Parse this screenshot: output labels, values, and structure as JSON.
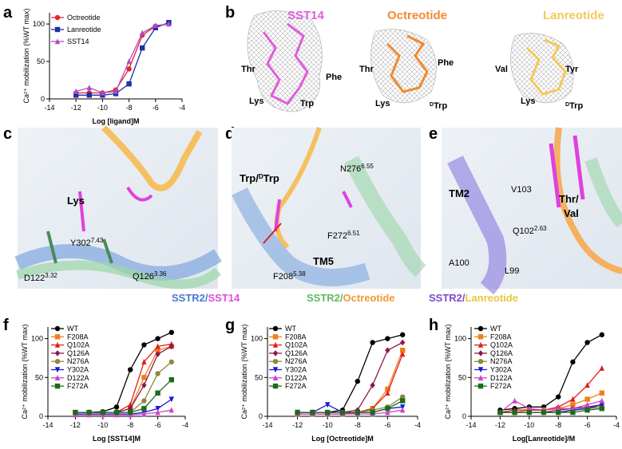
{
  "chart_data": [
    {
      "type": "line",
      "xlabel": "Log [ligand]M",
      "ylabel": "Ca²⁺ mobilization (%WT max)",
      "xlim": [
        -14,
        -4
      ],
      "xticks": [
        -14,
        -12,
        -10,
        -8,
        -6,
        -4
      ],
      "ylim": [
        0,
        115
      ],
      "yticks": [
        0,
        50,
        100
      ],
      "x": [
        -12,
        -11,
        -10,
        -9,
        -8,
        -7,
        -6,
        -5
      ],
      "series": [
        {
          "name": "Octreotide",
          "color": "#e8242a",
          "marker": "circle",
          "values": [
            8,
            8,
            8,
            12,
            40,
            85,
            97,
            100
          ]
        },
        {
          "name": "Lanreotide",
          "color": "#1f2fa8",
          "marker": "square",
          "values": [
            5,
            5,
            5,
            7,
            20,
            68,
            95,
            102
          ]
        },
        {
          "name": "SST14",
          "color": "#b04ac8",
          "marker": "triangle",
          "values": [
            10,
            15,
            8,
            10,
            50,
            88,
            98,
            100
          ]
        }
      ]
    },
    {
      "type": "line",
      "xlabel": "Log [SST14]M",
      "ylabel": "Ca²⁺ mobilization (%WT max)",
      "xlim": [
        -14,
        -4
      ],
      "xticks": [
        -14,
        -12,
        -10,
        -8,
        -6,
        -4
      ],
      "ylim": [
        0,
        115
      ],
      "yticks": [
        0,
        50,
        100
      ],
      "x": [
        -12,
        -11,
        -10,
        -9,
        -8,
        -7,
        -6,
        -5
      ],
      "series": [
        {
          "name": "WT",
          "color": "#000000",
          "marker": "circle",
          "values": [
            5,
            5,
            6,
            12,
            60,
            92,
            100,
            108
          ]
        },
        {
          "name": "F208A",
          "color": "#f07f1a",
          "marker": "square",
          "values": [
            5,
            5,
            5,
            5,
            10,
            50,
            85,
            90
          ]
        },
        {
          "name": "Q102A",
          "color": "#e01e1e",
          "marker": "triangle",
          "values": [
            5,
            5,
            5,
            5,
            15,
            70,
            90,
            93
          ]
        },
        {
          "name": "Q126A",
          "color": "#8b1a4a",
          "marker": "diamond",
          "values": [
            5,
            5,
            5,
            5,
            10,
            40,
            80,
            90
          ]
        },
        {
          "name": "N276A",
          "color": "#8a8a3a",
          "marker": "circle",
          "values": [
            5,
            5,
            5,
            5,
            5,
            20,
            55,
            70
          ]
        },
        {
          "name": "Y302A",
          "color": "#1a1ad0",
          "marker": "triangle-down",
          "values": [
            3,
            3,
            3,
            3,
            3,
            5,
            10,
            22
          ]
        },
        {
          "name": "D122A",
          "color": "#cc44cc",
          "marker": "triangle",
          "values": [
            2,
            2,
            2,
            2,
            2,
            3,
            5,
            8
          ]
        },
        {
          "name": "F272A",
          "color": "#1d6b1d",
          "marker": "square",
          "values": [
            5,
            5,
            5,
            5,
            5,
            10,
            30,
            47
          ]
        }
      ]
    },
    {
      "type": "line",
      "xlabel": "Log [Octreotide]M",
      "ylabel": "Ca²⁺ mobilization (%WT max)",
      "xlim": [
        -14,
        -4
      ],
      "xticks": [
        -14,
        -12,
        -10,
        -8,
        -6,
        -4
      ],
      "ylim": [
        0,
        115
      ],
      "yticks": [
        0,
        50,
        100
      ],
      "x": [
        -12,
        -11,
        -10,
        -9,
        -8,
        -7,
        -6,
        -5
      ],
      "series": [
        {
          "name": "WT",
          "color": "#000000",
          "marker": "circle",
          "values": [
            5,
            5,
            5,
            8,
            45,
            95,
            100,
            105
          ]
        },
        {
          "name": "F208A",
          "color": "#f07f1a",
          "marker": "square",
          "values": [
            3,
            3,
            3,
            3,
            5,
            10,
            35,
            85
          ]
        },
        {
          "name": "Q102A",
          "color": "#e01e1e",
          "marker": "triangle",
          "values": [
            3,
            3,
            3,
            3,
            5,
            10,
            30,
            80
          ]
        },
        {
          "name": "Q126A",
          "color": "#8b1a4a",
          "marker": "diamond",
          "values": [
            5,
            5,
            5,
            5,
            8,
            40,
            85,
            95
          ]
        },
        {
          "name": "N276A",
          "color": "#8a8a3a",
          "marker": "circle",
          "values": [
            5,
            5,
            5,
            5,
            5,
            8,
            12,
            25
          ]
        },
        {
          "name": "Y302A",
          "color": "#1a1ad0",
          "marker": "triangle-down",
          "values": [
            5,
            5,
            15,
            5,
            5,
            5,
            10,
            12
          ]
        },
        {
          "name": "D122A",
          "color": "#cc44cc",
          "marker": "triangle",
          "values": [
            3,
            3,
            3,
            3,
            3,
            3,
            5,
            8
          ]
        },
        {
          "name": "F272A",
          "color": "#1d6b1d",
          "marker": "square",
          "values": [
            5,
            5,
            5,
            5,
            5,
            5,
            10,
            20
          ]
        }
      ]
    },
    {
      "type": "line",
      "xlabel": "Log[Lanreotide]/M",
      "ylabel": "Ca²⁺ mobilization (%WT max)",
      "xlim": [
        -14,
        -4
      ],
      "xticks": [
        -14,
        -12,
        -10,
        -8,
        -6,
        -4
      ],
      "ylim": [
        0,
        115
      ],
      "yticks": [
        0,
        50,
        100
      ],
      "x": [
        -12,
        -11,
        -10,
        -9,
        -8,
        -7,
        -6,
        -5
      ],
      "series": [
        {
          "name": "WT",
          "color": "#000000",
          "marker": "circle",
          "values": [
            8,
            10,
            12,
            12,
            25,
            70,
            95,
            105
          ]
        },
        {
          "name": "F208A",
          "color": "#f07f1a",
          "marker": "square",
          "values": [
            5,
            5,
            8,
            8,
            10,
            15,
            22,
            30
          ]
        },
        {
          "name": "Q102A",
          "color": "#e01e1e",
          "marker": "triangle",
          "values": [
            5,
            8,
            8,
            8,
            12,
            22,
            40,
            62
          ]
        },
        {
          "name": "Q126A",
          "color": "#8b1a4a",
          "marker": "diamond",
          "values": [
            5,
            5,
            5,
            5,
            8,
            10,
            12,
            15
          ]
        },
        {
          "name": "N276A",
          "color": "#8a8a3a",
          "marker": "circle",
          "values": [
            5,
            5,
            5,
            5,
            5,
            8,
            10,
            12
          ]
        },
        {
          "name": "Y302A",
          "color": "#1a1ad0",
          "marker": "triangle-down",
          "values": [
            5,
            5,
            5,
            5,
            5,
            8,
            10,
            15
          ]
        },
        {
          "name": "D122A",
          "color": "#cc44cc",
          "marker": "triangle",
          "values": [
            5,
            20,
            10,
            8,
            10,
            10,
            15,
            20
          ]
        },
        {
          "name": "F272A",
          "color": "#1d6b1d",
          "marker": "square",
          "values": [
            5,
            5,
            5,
            5,
            5,
            5,
            8,
            10
          ]
        }
      ]
    }
  ],
  "panel_letters": [
    "a",
    "b",
    "c",
    "d",
    "e",
    "f",
    "g",
    "h"
  ],
  "panel_b": {
    "titles": [
      "SST14",
      "Octreotide",
      "Lanreotide"
    ],
    "residues": [
      {
        "text": "Thr"
      },
      {
        "text": "Phe"
      },
      {
        "text": "Lys"
      },
      {
        "text": "Trp"
      },
      {
        "text": "Thr"
      },
      {
        "text": "Phe"
      },
      {
        "text": "Lys"
      },
      {
        "pre": "D",
        "text": "Trp"
      },
      {
        "text": "Val"
      },
      {
        "text": "Tyr"
      },
      {
        "text": "Lys"
      },
      {
        "pre": "D",
        "text": "Trp"
      }
    ]
  },
  "panel_c": [
    {
      "text": "Lys"
    },
    {
      "text": "Y302",
      "sup": "7.43"
    },
    {
      "text": "D122",
      "sub": "3.32"
    },
    {
      "text": "Q126",
      "sup": "3.36"
    }
  ],
  "panel_d": [
    {
      "text": "Trp/",
      "pre": "D",
      "post": "Trp"
    },
    {
      "text": "N276",
      "sup": "6.55"
    },
    {
      "text": "F272",
      "sup": "6.51"
    },
    {
      "text": "F208",
      "sup": "5.38"
    },
    {
      "text": "TM5"
    }
  ],
  "panel_e": [
    {
      "text": "TM2"
    },
    {
      "text": "V103"
    },
    {
      "text": "Thr/"
    },
    {
      "text": "Val"
    },
    {
      "text": "Q102",
      "sup": "2.63"
    },
    {
      "text": "A100"
    },
    {
      "text": "L99"
    }
  ],
  "complex_legend": [
    {
      "receptor": "SSTR2/",
      "ligand": "SST14",
      "receptor_color": "#4a78d0",
      "ligand_color": "#e04ce0"
    },
    {
      "receptor": "SSTR2/",
      "ligand": "Octreotide",
      "receptor_color": "#5fb85f",
      "ligand_color": "#f09a30"
    },
    {
      "receptor": "SSTR2/",
      "ligand": "Lanreotide",
      "receptor_color": "#7a4ad0",
      "ligand_color": "#e8c840"
    }
  ]
}
